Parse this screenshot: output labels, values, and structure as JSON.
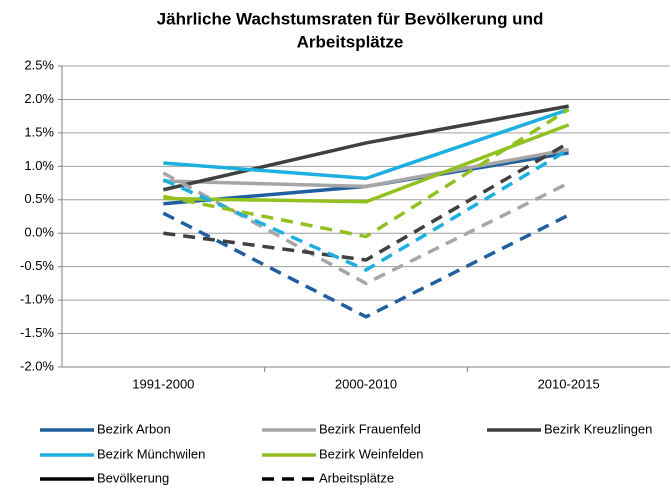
{
  "chart_data": {
    "type": "line",
    "title": [
      "Jährliche Wachstumsraten  für Bevölkerung und",
      "Arbeitsplätze"
    ],
    "categories": [
      "1991-2000",
      "2000-2010",
      "2010-2015"
    ],
    "line_styles": [
      {
        "name": "Bevölkerung",
        "dashed": false
      },
      {
        "name": "Arbeitsplätze",
        "dashed": true
      }
    ],
    "series": [
      {
        "name": "Bezirk Arbon",
        "color": "#1f5fa0",
        "values": [
          [
            0.44,
            0.7,
            1.2
          ],
          [
            0.3,
            -1.25,
            0.27
          ]
        ]
      },
      {
        "name": "Bezirk Frauenfeld",
        "color": "#a6a6a6",
        "values": [
          [
            0.78,
            0.7,
            1.25
          ],
          [
            0.9,
            -0.75,
            0.75
          ]
        ]
      },
      {
        "name": "Bezirk Kreuzlingen",
        "color": "#404040",
        "values": [
          [
            0.65,
            1.35,
            1.9
          ],
          [
            0.0,
            -0.4,
            1.35
          ]
        ]
      },
      {
        "name": "Bezirk Münchwilen",
        "color": "#1cb0e0",
        "values": [
          [
            1.05,
            0.82,
            1.85
          ],
          [
            0.8,
            -0.55,
            1.25
          ]
        ]
      },
      {
        "name": "Bezirk Weinfelden",
        "color": "#92c020",
        "values": [
          [
            0.52,
            0.47,
            1.62
          ],
          [
            0.55,
            -0.05,
            1.85
          ]
        ]
      }
    ],
    "ylim": [
      -2.0,
      2.5
    ],
    "yticks": [
      {
        "value": -2.0,
        "label": "-2.0%"
      },
      {
        "value": -1.5,
        "label": "-1.5%"
      },
      {
        "value": -1.0,
        "label": "-1.0%"
      },
      {
        "value": -0.5,
        "label": "-0.5%"
      },
      {
        "value": 0.0,
        "label": "0.0%"
      },
      {
        "value": 0.5,
        "label": "0.5%"
      },
      {
        "value": 1.0,
        "label": "1.0%"
      },
      {
        "value": 1.5,
        "label": "1.5%"
      },
      {
        "value": 2.0,
        "label": "2.0%"
      },
      {
        "value": 2.5,
        "label": "2.5%"
      }
    ],
    "grid": true
  }
}
